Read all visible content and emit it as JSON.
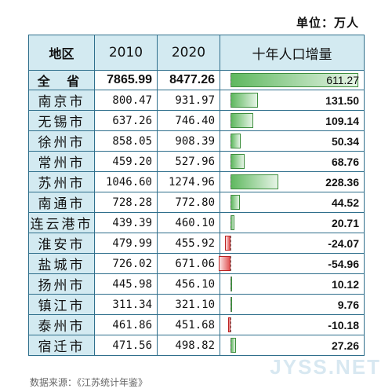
{
  "unit_label": "单位：万人",
  "headers": {
    "region": "地区",
    "y2010": "2010",
    "y2020": "2020",
    "growth": "十年人口增量"
  },
  "total": {
    "region": "全 省",
    "y2010": "7865.99",
    "y2020": "8477.26",
    "growth": "611.27",
    "growth_value": 611.27
  },
  "rows": [
    {
      "region": "南京市",
      "y2010": "800.47",
      "y2020": "931.97",
      "growth": "131.50",
      "growth_value": 131.5
    },
    {
      "region": "无锡市",
      "y2010": "637.26",
      "y2020": "746.40",
      "growth": "109.14",
      "growth_value": 109.14
    },
    {
      "region": "徐州市",
      "y2010": "858.05",
      "y2020": "908.39",
      "growth": "50.34",
      "growth_value": 50.34
    },
    {
      "region": "常州市",
      "y2010": "459.20",
      "y2020": "527.96",
      "growth": "68.76",
      "growth_value": 68.76
    },
    {
      "region": "苏州市",
      "y2010": "1046.60",
      "y2020": "1274.96",
      "growth": "228.36",
      "growth_value": 228.36
    },
    {
      "region": "南通市",
      "y2010": "728.28",
      "y2020": "772.80",
      "growth": "44.52",
      "growth_value": 44.52
    },
    {
      "region": "连云港市",
      "y2010": "439.39",
      "y2020": "460.10",
      "growth": "20.71",
      "growth_value": 20.71
    },
    {
      "region": "淮安市",
      "y2010": "479.99",
      "y2020": "455.92",
      "growth": "-24.07",
      "growth_value": -24.07
    },
    {
      "region": "盐城市",
      "y2010": "726.02",
      "y2020": "671.06",
      "growth": "-54.96",
      "growth_value": -54.96
    },
    {
      "region": "扬州市",
      "y2010": "445.98",
      "y2020": "456.10",
      "growth": "10.12",
      "growth_value": 10.12
    },
    {
      "region": "镇江市",
      "y2010": "311.34",
      "y2020": "321.10",
      "growth": "9.76",
      "growth_value": 9.76
    },
    {
      "region": "泰州市",
      "y2010": "461.86",
      "y2020": "451.68",
      "growth": "-10.18",
      "growth_value": -10.18
    },
    {
      "region": "宿迁市",
      "y2010": "471.56",
      "y2020": "498.82",
      "growth": "27.26",
      "growth_value": 27.26
    }
  ],
  "source": "数据来源：《江苏统计年鉴》",
  "watermark": "JYSS.NET",
  "colors": {
    "header_bg": "#d3eaf1",
    "positive_bar": "#5fb85f",
    "negative_bar": "#e05555",
    "border": "#2f6f8c"
  }
}
